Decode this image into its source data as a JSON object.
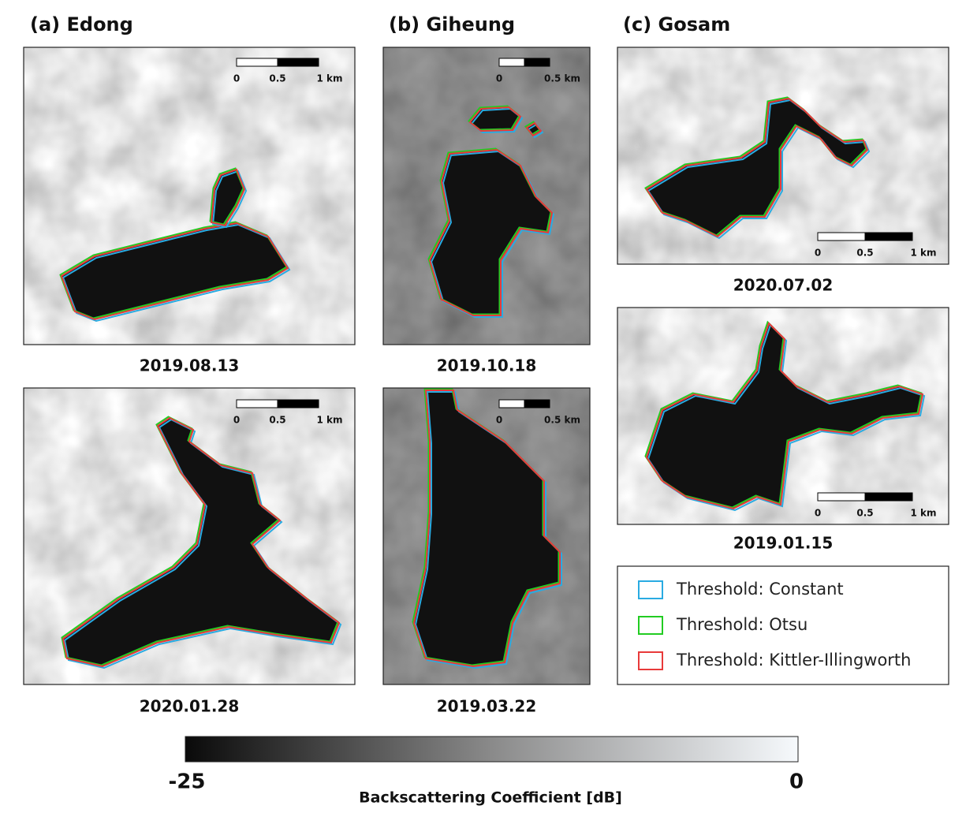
{
  "panels": [
    {
      "title": "(a) Edong",
      "images": [
        {
          "date": "2019.08.13",
          "scale": [
            "0",
            "0.5",
            "1 km"
          ]
        },
        {
          "date": "2020.01.28",
          "scale": [
            "0",
            "0.5",
            "1 km"
          ]
        }
      ]
    },
    {
      "title": "(b) Giheung",
      "images": [
        {
          "date": "2019.10.18",
          "scale": [
            "0",
            "0.5 km"
          ]
        },
        {
          "date": "2019.03.22",
          "scale": [
            "0",
            "0.5 km"
          ]
        }
      ]
    },
    {
      "title": "(c) Gosam",
      "images": [
        {
          "date": "2020.07.02",
          "scale": [
            "0",
            "0.5",
            "1 km"
          ]
        },
        {
          "date": "2019.01.15",
          "scale": [
            "0",
            "0.5",
            "1 km"
          ]
        }
      ]
    }
  ],
  "legend": [
    {
      "label": "Threshold: Constant",
      "color": "#29abe2"
    },
    {
      "label": "Threshold: Otsu",
      "color": "#22cc22"
    },
    {
      "label": "Threshold: Kittler-Illingworth",
      "color": "#e83a3a"
    }
  ],
  "colorbar": {
    "min": -25,
    "max": 0,
    "label": "Backscattering Coefficient [dB]"
  }
}
